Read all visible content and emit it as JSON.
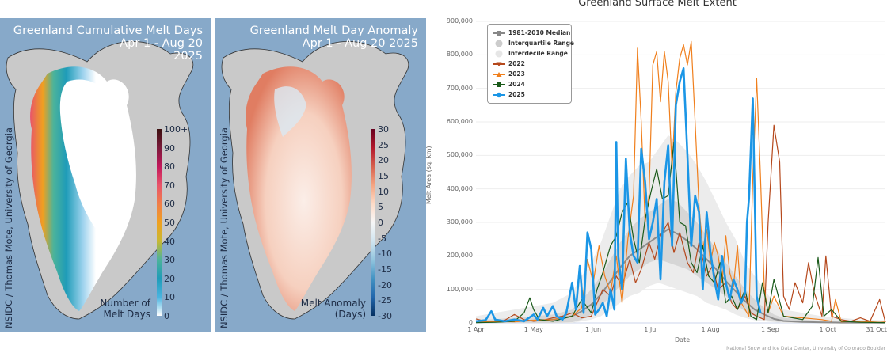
{
  "map_cumulative": {
    "title_line1": "Greenland Cumulative Melt Days",
    "title_line2": "Apr 1 - Aug 20",
    "title_line3": "2025",
    "credit": "NSIDC / Thomas Mote, University of Georgia",
    "colorbar_label_line1": "Number of",
    "colorbar_label_line2": "Melt Days",
    "colorbar_ticks": [
      "100+",
      "90",
      "80",
      "70",
      "60",
      "50",
      "40",
      "30",
      "20",
      "10",
      "0"
    ],
    "colorbar_colors": [
      "#3b0f0f",
      "#7a1a3a",
      "#c2185b",
      "#e8546a",
      "#f07e4a",
      "#f0a020",
      "#c8b832",
      "#4cb39a",
      "#1f9cb8",
      "#4ab4e0",
      "#ffffff"
    ],
    "background_color": "#87a9c9"
  },
  "map_anomaly": {
    "title_line1": "Greenland Melt Day Anomaly",
    "title_line2": "Apr 1 - Aug 20 2025",
    "credit": "NSIDC / Thomas Mote, University of Georgia",
    "colorbar_label_line1": "Melt Anomaly",
    "colorbar_label_line2": "(Days)",
    "colorbar_ticks": [
      "30",
      "25",
      "20",
      "15",
      "10",
      "5",
      "0",
      "-5",
      "-10",
      "-15",
      "-20",
      "-25",
      "-30"
    ],
    "colorbar_colors": [
      "#67001f",
      "#b2182b",
      "#d6604d",
      "#f4a582",
      "#fddbc7",
      "#f7f7f7",
      "#d1e5f0",
      "#92c5de",
      "#4393c3",
      "#2166ac",
      "#053061"
    ],
    "background_color": "#87a9c9"
  },
  "chart_data": {
    "type": "line",
    "title": "Greenland Surface Melt Extent",
    "xlabel": "Date",
    "ylabel": "Melt Area (sq. km)",
    "ylim": [
      0,
      900000
    ],
    "yticks": [
      "0",
      "100,000",
      "200,000",
      "300,000",
      "400,000",
      "500,000",
      "600,000",
      "700,000",
      "800,000",
      "900,000"
    ],
    "ytick_values": [
      0,
      100000,
      200000,
      300000,
      400000,
      500000,
      600000,
      700000,
      800000,
      900000
    ],
    "xlim_days": [
      0,
      213
    ],
    "xticks": [
      "1 Apr",
      "1 May",
      "1 Jun",
      "1 Jul",
      "1 Aug",
      "1 Sep",
      "1 Oct",
      "31 Oct"
    ],
    "xtick_days": [
      0,
      30,
      61,
      91,
      122,
      153,
      183,
      213
    ],
    "grid": true,
    "legend_position": "top-left",
    "credit": "National Snow and Ice Data Center, University of Colorado Boulder",
    "legend": [
      {
        "name": "1981-2010 Median",
        "color": "#888888",
        "symbol": "square"
      },
      {
        "name": "Interquartile Range",
        "color": "#cccccc",
        "symbol": "circle"
      },
      {
        "name": "Interdecile Range",
        "color": "#e6e6e6",
        "symbol": "circle"
      },
      {
        "name": "2022",
        "color": "#b5481c",
        "symbol": "triangle-down"
      },
      {
        "name": "2023",
        "color": "#f07f1c",
        "symbol": "triangle-up"
      },
      {
        "name": "2024",
        "color": "#1a5a1a",
        "symbol": "square"
      },
      {
        "name": "2025",
        "color": "#1b96e6",
        "symbol": "diamond"
      }
    ],
    "bands": {
      "interdecile": {
        "x": [
          0,
          20,
          40,
          50,
          55,
          60,
          65,
          70,
          75,
          80,
          85,
          90,
          95,
          100,
          105,
          110,
          115,
          120,
          125,
          130,
          135,
          140,
          145,
          150,
          155,
          160,
          170,
          180,
          190,
          200,
          213
        ],
        "low": [
          0,
          0,
          0,
          0,
          5000,
          10000,
          20000,
          40000,
          60000,
          80000,
          90000,
          110000,
          120000,
          110000,
          100000,
          90000,
          80000,
          60000,
          50000,
          40000,
          25000,
          15000,
          8000,
          5000,
          2000,
          0,
          0,
          0,
          0,
          0,
          0
        ],
        "high": [
          20000,
          40000,
          60000,
          90000,
          140000,
          180000,
          240000,
          320000,
          400000,
          440000,
          470000,
          480000,
          520000,
          560000,
          540000,
          510000,
          470000,
          420000,
          360000,
          300000,
          250000,
          180000,
          140000,
          100000,
          60000,
          40000,
          30000,
          20000,
          15000,
          10000,
          8000
        ]
      },
      "interquartile": {
        "x": [
          0,
          20,
          40,
          50,
          55,
          60,
          65,
          70,
          75,
          80,
          85,
          90,
          95,
          100,
          105,
          110,
          115,
          120,
          125,
          130,
          135,
          140,
          145,
          150,
          155,
          160,
          170,
          180,
          190,
          200,
          213
        ],
        "low": [
          0,
          0,
          0,
          2000,
          10000,
          25000,
          50000,
          80000,
          110000,
          140000,
          160000,
          180000,
          190000,
          180000,
          170000,
          160000,
          140000,
          120000,
          100000,
          80000,
          55000,
          35000,
          20000,
          10000,
          5000,
          2000,
          0,
          0,
          0,
          0,
          0
        ],
        "high": [
          8000,
          15000,
          25000,
          40000,
          70000,
          100000,
          140000,
          190000,
          240000,
          280000,
          310000,
          330000,
          350000,
          370000,
          360000,
          330000,
          300000,
          260000,
          220000,
          180000,
          140000,
          100000,
          70000,
          45000,
          25000,
          15000,
          10000,
          6000,
          4000,
          3000,
          2000
        ]
      }
    },
    "series": [
      {
        "name": "1981-2010 Median",
        "x": [
          0,
          20,
          40,
          50,
          55,
          60,
          65,
          70,
          75,
          80,
          85,
          90,
          95,
          100,
          105,
          110,
          115,
          120,
          125,
          130,
          135,
          140,
          145,
          150,
          155,
          160,
          170,
          180,
          190,
          200,
          213
        ],
        "y": [
          2000,
          5000,
          10000,
          20000,
          35000,
          55000,
          85000,
          125000,
          165000,
          200000,
          220000,
          240000,
          260000,
          280000,
          265000,
          245000,
          220000,
          190000,
          160000,
          125000,
          95000,
          65000,
          40000,
          25000,
          12000,
          6000,
          3000,
          2000,
          1000,
          1000,
          500
        ]
      },
      {
        "name": "2022",
        "x": [
          0,
          5,
          10,
          15,
          20,
          25,
          30,
          35,
          40,
          45,
          50,
          55,
          60,
          63,
          66,
          70,
          73,
          76,
          80,
          83,
          86,
          90,
          93,
          96,
          100,
          103,
          106,
          110,
          113,
          116,
          120,
          123,
          126,
          130,
          133,
          136,
          140,
          143,
          146,
          150,
          152,
          155,
          158,
          160,
          163,
          166,
          170,
          173,
          176,
          180,
          182,
          185,
          190,
          195,
          200,
          205,
          210,
          213
        ],
        "y": [
          12000,
          5000,
          3000,
          8000,
          25000,
          10000,
          5000,
          8000,
          15000,
          20000,
          30000,
          15000,
          20000,
          60000,
          100000,
          80000,
          140000,
          110000,
          190000,
          120000,
          160000,
          240000,
          190000,
          260000,
          300000,
          210000,
          270000,
          180000,
          150000,
          240000,
          140000,
          170000,
          100000,
          120000,
          60000,
          40000,
          80000,
          30000,
          20000,
          10000,
          300000,
          590000,
          480000,
          80000,
          40000,
          120000,
          60000,
          180000,
          90000,
          20000,
          200000,
          20000,
          10000,
          5000,
          15000,
          5000,
          70000,
          2000
        ]
      },
      {
        "name": "2023",
        "x": [
          0,
          10,
          20,
          30,
          40,
          50,
          55,
          58,
          61,
          64,
          67,
          70,
          73,
          76,
          79,
          82,
          84,
          86,
          88,
          90,
          92,
          94,
          96,
          98,
          100,
          102,
          104,
          106,
          108,
          110,
          112,
          114,
          116,
          118,
          120,
          122,
          124,
          126,
          128,
          130,
          132,
          134,
          136,
          138,
          140,
          142,
          144,
          146,
          148,
          150,
          152,
          155,
          160,
          170,
          180,
          185,
          187,
          190,
          200,
          210,
          213
        ],
        "y": [
          2000,
          5000,
          3000,
          8000,
          10000,
          20000,
          45000,
          190000,
          120000,
          230000,
          140000,
          90000,
          200000,
          60000,
          250000,
          380000,
          820000,
          600000,
          300000,
          380000,
          770000,
          810000,
          660000,
          810000,
          720000,
          460000,
          690000,
          790000,
          830000,
          770000,
          840000,
          600000,
          350000,
          220000,
          280000,
          180000,
          240000,
          200000,
          120000,
          260000,
          150000,
          110000,
          230000,
          60000,
          40000,
          20000,
          430000,
          730000,
          440000,
          100000,
          30000,
          80000,
          20000,
          15000,
          10000,
          5000,
          70000,
          3000,
          5000,
          2000,
          3000
        ]
      },
      {
        "name": "2024",
        "x": [
          0,
          10,
          20,
          25,
          28,
          30,
          33,
          40,
          50,
          55,
          60,
          63,
          66,
          70,
          73,
          76,
          79,
          82,
          85,
          88,
          91,
          94,
          97,
          100,
          103,
          106,
          109,
          112,
          115,
          118,
          121,
          124,
          127,
          130,
          133,
          136,
          140,
          143,
          146,
          149,
          152,
          155,
          160,
          170,
          175,
          178,
          181,
          185,
          190,
          200,
          213
        ],
        "y": [
          1000,
          2000,
          5000,
          30000,
          75000,
          40000,
          10000,
          5000,
          20000,
          70000,
          30000,
          100000,
          150000,
          230000,
          260000,
          330000,
          360000,
          250000,
          180000,
          310000,
          390000,
          460000,
          370000,
          380000,
          540000,
          300000,
          290000,
          180000,
          150000,
          230000,
          140000,
          120000,
          180000,
          60000,
          80000,
          40000,
          100000,
          20000,
          10000,
          120000,
          30000,
          130000,
          20000,
          10000,
          50000,
          195000,
          20000,
          40000,
          5000,
          2000,
          1000
        ]
      },
      {
        "name": "2025",
        "x": [
          0,
          5,
          8,
          10,
          15,
          20,
          25,
          30,
          32,
          35,
          37,
          40,
          42,
          45,
          47,
          50,
          52,
          54,
          56,
          58,
          60,
          62,
          64,
          66,
          68,
          70,
          72,
          73,
          74,
          76,
          78,
          80,
          82,
          84,
          86,
          88,
          90,
          92,
          94,
          96,
          98,
          100,
          102,
          104,
          106,
          108,
          110,
          112,
          114,
          116,
          118,
          120,
          122,
          124,
          126,
          128,
          130,
          132,
          134,
          136,
          138,
          140,
          141,
          142,
          144,
          146,
          148
        ],
        "y": [
          5000,
          8000,
          35000,
          10000,
          5000,
          10000,
          5000,
          25000,
          10000,
          45000,
          20000,
          50000,
          20000,
          10000,
          30000,
          120000,
          40000,
          170000,
          30000,
          270000,
          220000,
          25000,
          40000,
          60000,
          20000,
          100000,
          40000,
          540000,
          200000,
          100000,
          490000,
          270000,
          200000,
          180000,
          520000,
          420000,
          250000,
          300000,
          370000,
          130000,
          420000,
          530000,
          230000,
          650000,
          720000,
          760000,
          500000,
          230000,
          380000,
          330000,
          100000,
          330000,
          210000,
          130000,
          70000,
          200000,
          120000,
          70000,
          130000,
          100000,
          60000,
          90000,
          300000,
          370000,
          670000,
          80000,
          30000
        ]
      }
    ]
  }
}
